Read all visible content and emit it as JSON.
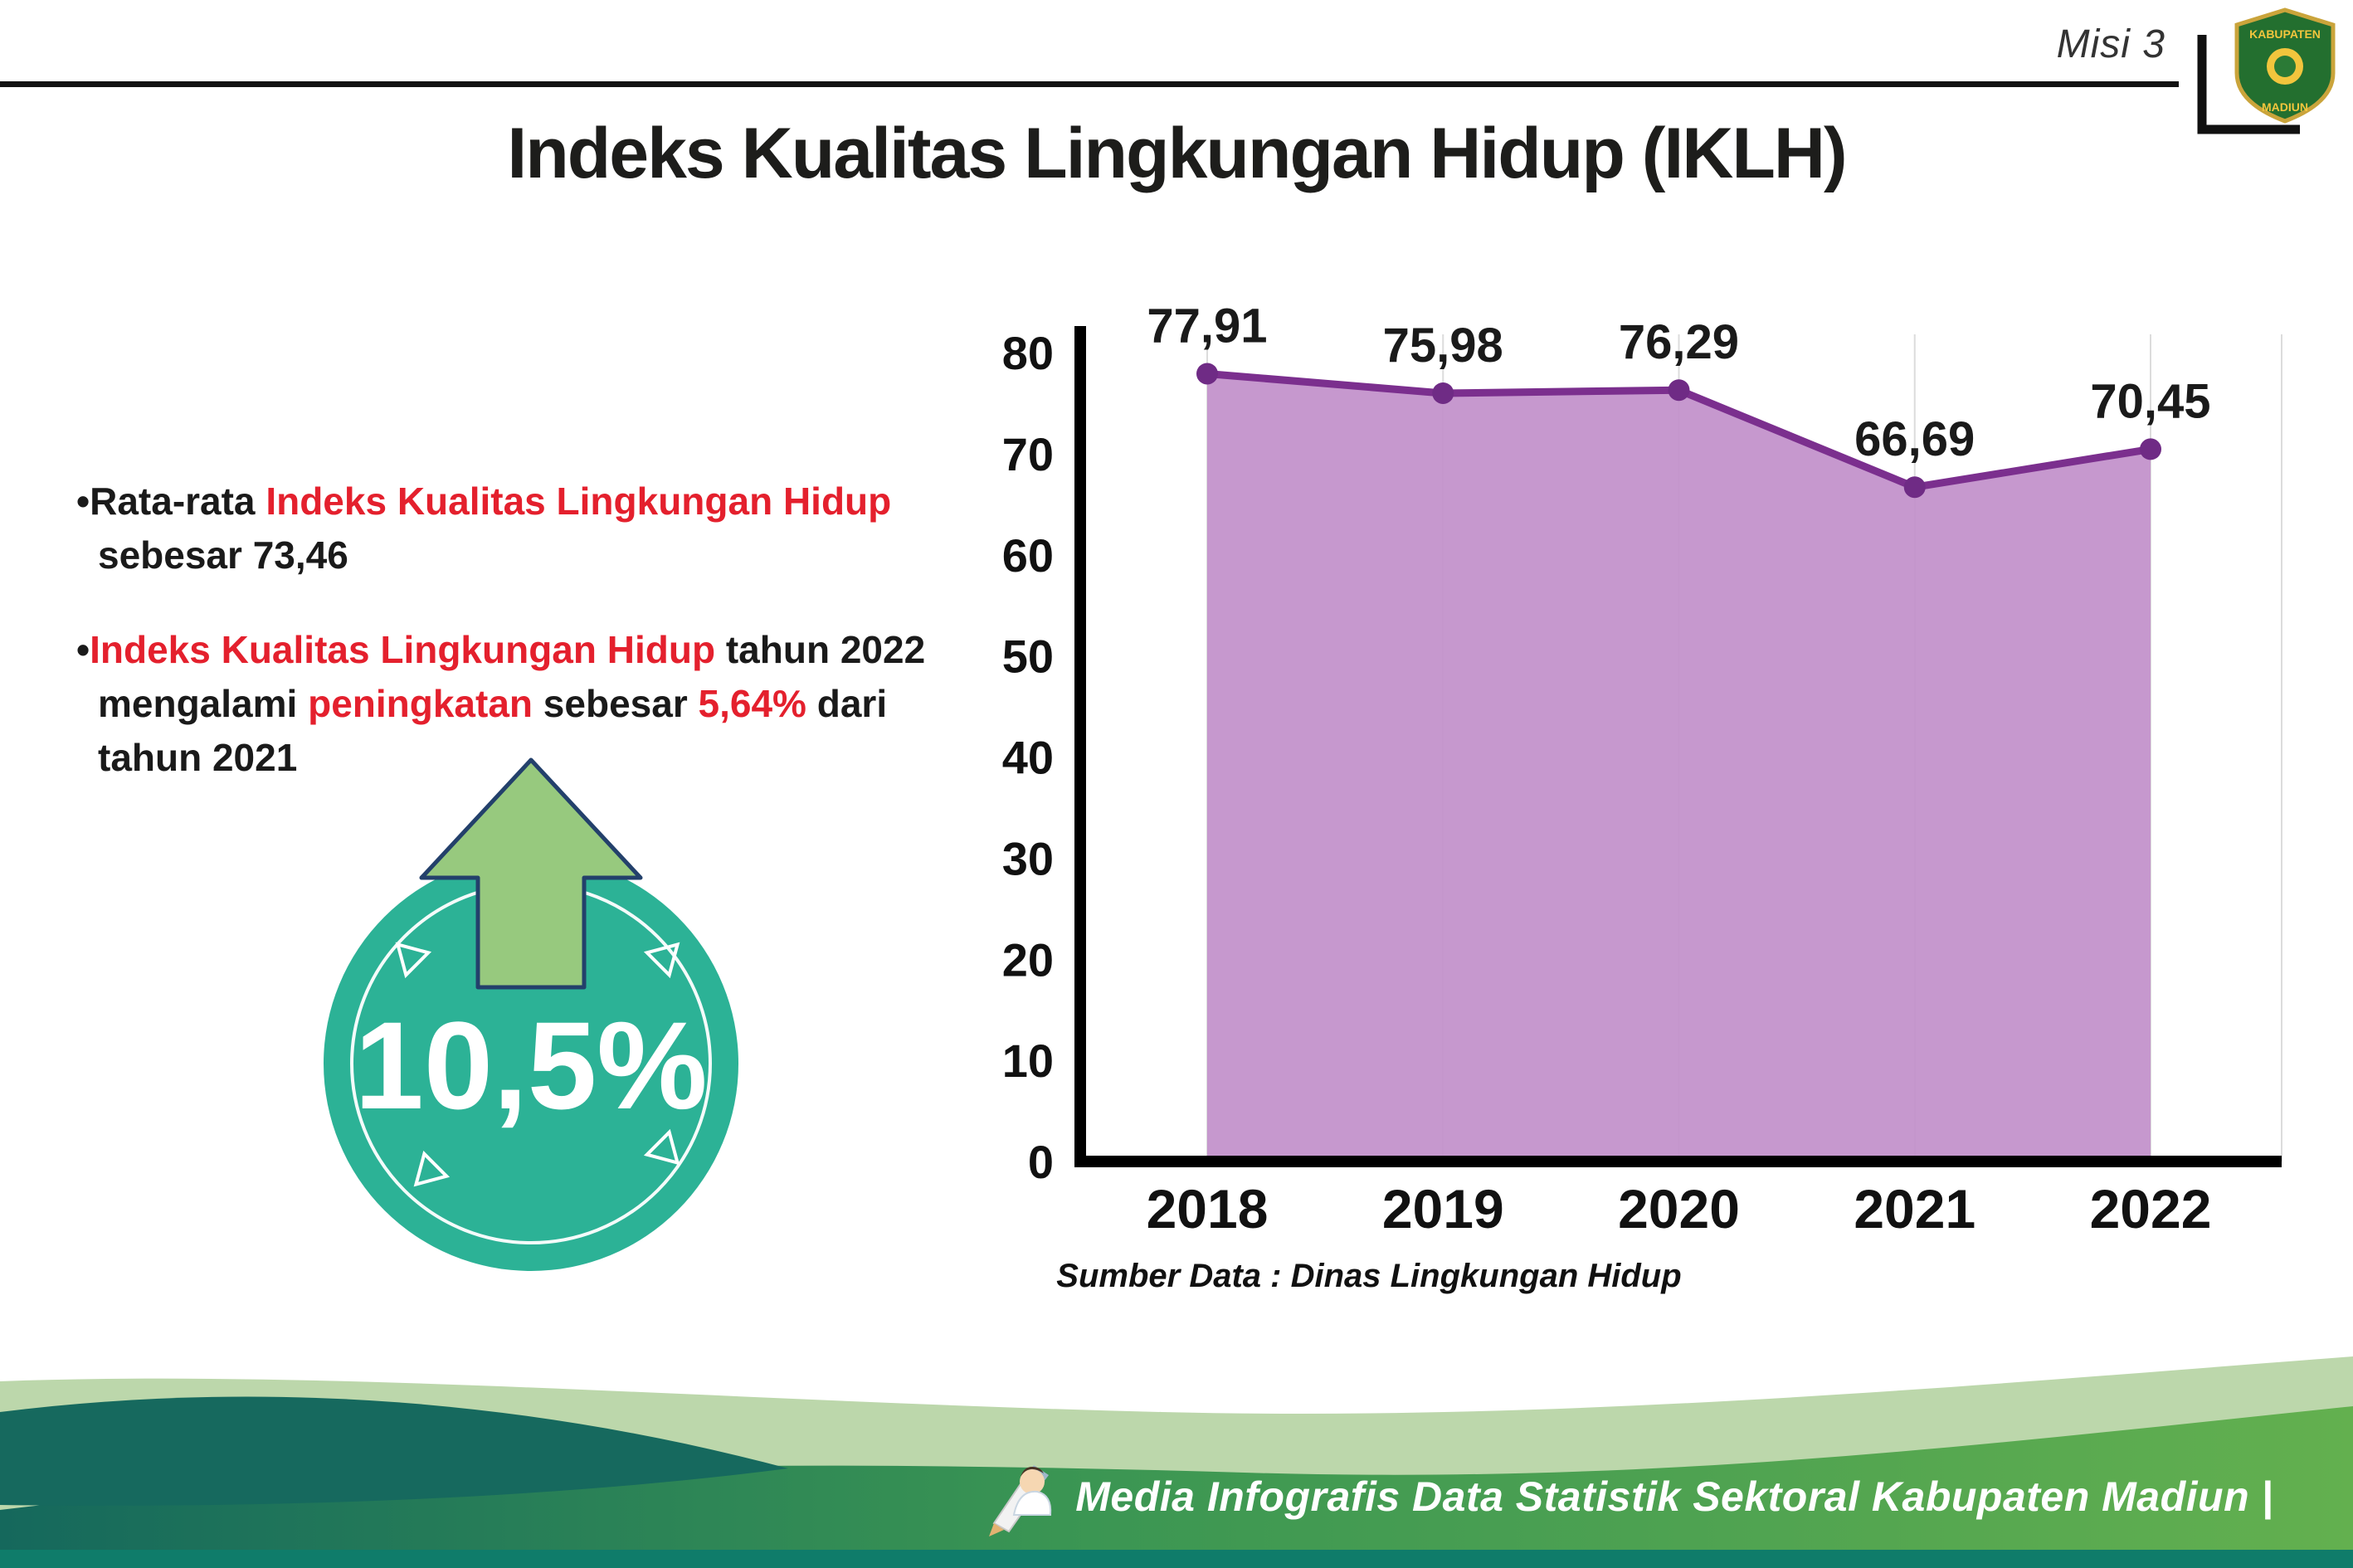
{
  "page": {
    "misi": "Misi 3",
    "title": "Indeks Kualitas Lingkungan Hidup (IKLH)"
  },
  "logo": {
    "top": "KABUPATEN",
    "bottom": "MADIUN"
  },
  "bullets": {
    "marker": "•",
    "b1": {
      "l1_black": "Rata-rata ",
      "l1_red": "Indeks Kualitas Lingkungan Hidup",
      "l2": "sebesar 73,46"
    },
    "b2": {
      "l1_red": "Indeks Kualitas Lingkungan Hidup",
      "l1_black": " tahun 2022",
      "l2_a": "mengalami ",
      "l2_red1": "peningkatan",
      "l2_b": " sebesar ",
      "l2_red2": "5,64%",
      "l2_c": " dari",
      "l3": "tahun 2021"
    }
  },
  "badge": {
    "value": "10,5%"
  },
  "chart_data": {
    "type": "area",
    "title": "Indeks Kualitas Lingkungan Hidup (IKLH)",
    "categories": [
      "2018",
      "2019",
      "2020",
      "2021",
      "2022"
    ],
    "values": [
      77.91,
      75.98,
      76.29,
      66.69,
      70.45
    ],
    "point_labels": [
      "77,91",
      "75,98",
      "76,29",
      "66,69",
      "70,45"
    ],
    "ylim": [
      0,
      80
    ],
    "yticks": [
      0,
      10,
      20,
      30,
      40,
      50,
      60,
      70,
      80
    ],
    "grid": "vertical-light",
    "legend": "none",
    "fill_color": "#c18fca",
    "line_color": "#7b2f8e",
    "marker_color": "#6f2b85",
    "label_color": "#1a1a1a",
    "source": "Sumber Data : Dinas Lingkungan Hidup"
  },
  "footer": {
    "text": "Media Infografis Data Statistik Sektoral Kabupaten Madiun |"
  },
  "colors": {
    "accent_red": "#e4202d",
    "badge_teal": "#2cb296",
    "arrow_green": "#97c97e",
    "footer_teal": "#16695e",
    "footer_green": "#3a9553"
  }
}
